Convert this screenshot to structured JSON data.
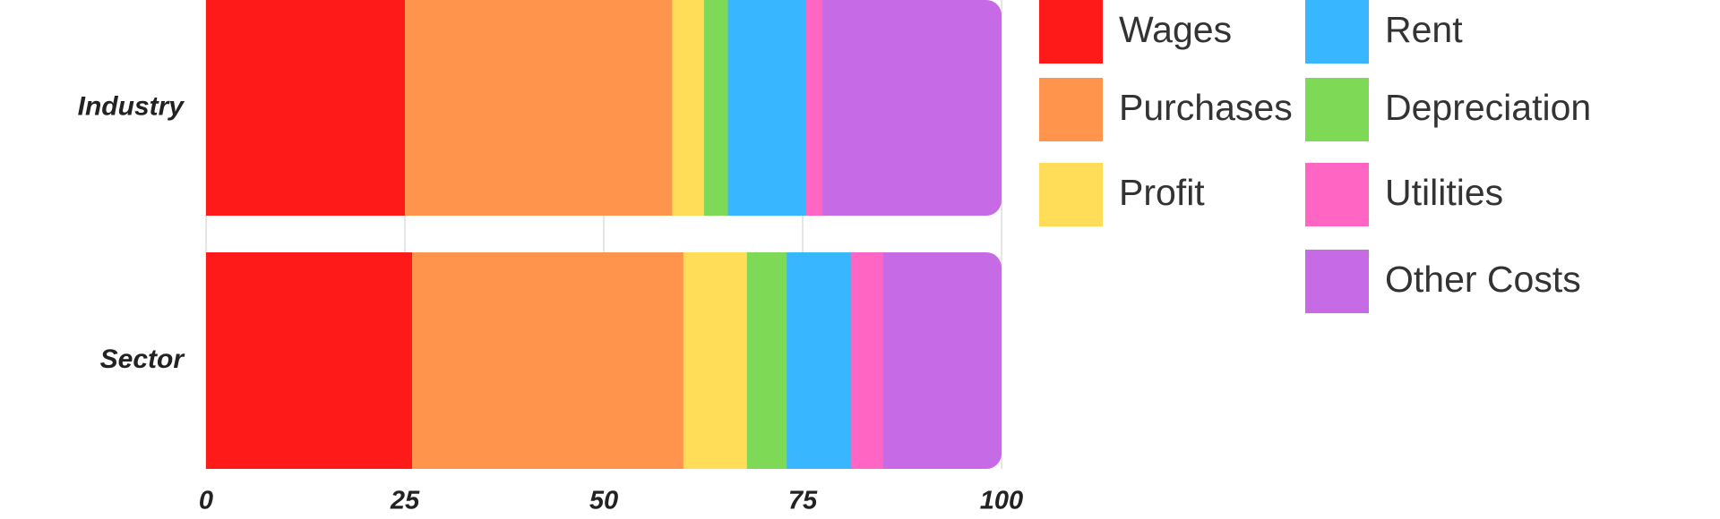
{
  "chart_data": {
    "type": "stacked-barh",
    "categories": [
      "Industry",
      "Sector"
    ],
    "series": [
      {
        "name": "Wages",
        "color": "#ff1a1a",
        "values": [
          25.0,
          25.9
        ]
      },
      {
        "name": "Purchases",
        "color": "#ff944d",
        "values": [
          33.6,
          34.1
        ]
      },
      {
        "name": "Profit",
        "color": "#ffdd59",
        "values": [
          4.0,
          8.0
        ]
      },
      {
        "name": "Depreciation",
        "color": "#7ed957",
        "values": [
          3.0,
          5.0
        ]
      },
      {
        "name": "Rent",
        "color": "#38b6ff",
        "values": [
          9.8,
          8.1
        ]
      },
      {
        "name": "Utilities",
        "color": "#ff66c4",
        "values": [
          2.1,
          4.0
        ]
      },
      {
        "name": "Other Costs",
        "color": "#c76ae6",
        "values": [
          22.5,
          14.9
        ]
      }
    ],
    "xlim": [
      0,
      100
    ],
    "xticks": [
      0,
      25,
      50,
      75,
      100
    ],
    "grid": true
  }
}
